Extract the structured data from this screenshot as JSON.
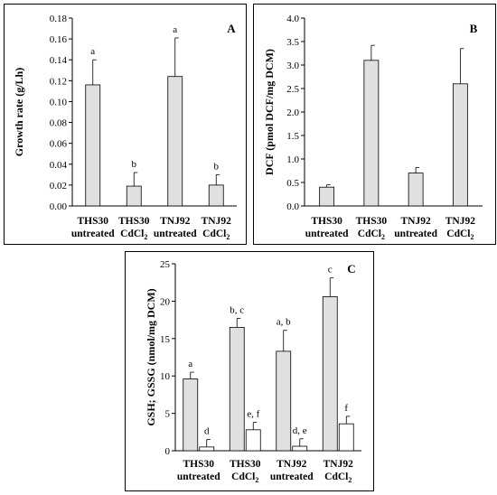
{
  "chart_data": [
    {
      "type": "bar",
      "panel": "A",
      "ylabel": "Growth rate (g/Lh)",
      "ylim": [
        0,
        0.18
      ],
      "yticks": [
        "0.00",
        "0.02",
        "0.04",
        "0.06",
        "0.08",
        "0.10",
        "0.12",
        "0.14",
        "0.16",
        "0.18"
      ],
      "categories": [
        {
          "line1": "THS30",
          "line2": "untreated",
          "sub": ""
        },
        {
          "line1": "THS30",
          "line2": "CdCl",
          "sub": "2"
        },
        {
          "line1": "TNJ92",
          "line2": "untreated",
          "sub": ""
        },
        {
          "line1": "TNJ92",
          "line2": "CdCl",
          "sub": "2"
        }
      ],
      "series": [
        {
          "values": [
            0.116,
            0.019,
            0.124,
            0.02
          ],
          "errors": [
            0.024,
            0.013,
            0.037,
            0.01
          ],
          "letters": [
            "a",
            "b",
            "a",
            "b"
          ],
          "color": "#e0e0e0"
        }
      ]
    },
    {
      "type": "bar",
      "panel": "B",
      "ylabel": "DCF (pmol DCF/mg DCM)",
      "ylim": [
        0,
        4.0
      ],
      "yticks": [
        "0.0",
        "0.5",
        "1.0",
        "1.5",
        "2.0",
        "2.5",
        "3.0",
        "3.5",
        "4.0"
      ],
      "categories": [
        {
          "line1": "THS30",
          "line2": "untreated",
          "sub": ""
        },
        {
          "line1": "THS30",
          "line2": "CdCl",
          "sub": "2"
        },
        {
          "line1": "TNJ92",
          "line2": "untreated",
          "sub": ""
        },
        {
          "line1": "TNJ92",
          "line2": "CdCl",
          "sub": "2"
        }
      ],
      "series": [
        {
          "values": [
            0.4,
            3.1,
            0.7,
            2.6
          ],
          "errors": [
            0.05,
            0.32,
            0.12,
            0.75
          ],
          "letters": [
            "",
            "",
            "",
            ""
          ],
          "color": "#e0e0e0"
        }
      ]
    },
    {
      "type": "bar",
      "panel": "C",
      "ylabel": "GSH; GSSG (nmol/mg DCM)",
      "ylim": [
        0,
        25
      ],
      "yticks": [
        "0",
        "5",
        "10",
        "15",
        "20",
        "25"
      ],
      "categories": [
        {
          "line1": "THS30",
          "line2": "untreated",
          "sub": ""
        },
        {
          "line1": "THS30",
          "line2": "CdCl",
          "sub": "2"
        },
        {
          "line1": "TNJ92",
          "line2": "untreated",
          "sub": ""
        },
        {
          "line1": "TNJ92",
          "line2": "CdCl",
          "sub": "2"
        }
      ],
      "series": [
        {
          "values": [
            9.6,
            16.5,
            13.3,
            20.6
          ],
          "errors": [
            0.9,
            1.2,
            2.8,
            2.5
          ],
          "letters": [
            "a",
            "b, c",
            "a, b",
            "c"
          ],
          "color": "#e0e0e0"
        },
        {
          "values": [
            0.5,
            2.8,
            0.6,
            3.6
          ],
          "errors": [
            1.0,
            1.0,
            1.0,
            1.0
          ],
          "letters": [
            "d",
            "e, f",
            "d, e",
            "f"
          ],
          "color": "#ffffff"
        }
      ]
    }
  ]
}
